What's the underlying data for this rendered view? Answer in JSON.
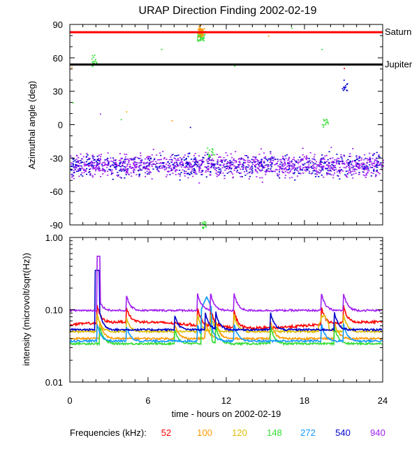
{
  "chart_data": [
    {
      "type": "scatter",
      "title": "URAP Direction Finding  2002-02-19",
      "ylabel": "Azimuthal angle (deg)",
      "xlim": [
        0,
        24
      ],
      "ylim": [
        -90,
        90
      ],
      "yticks": [
        "90",
        "60",
        "30",
        "0",
        "-30",
        "-60",
        "-90"
      ],
      "reference_lines": [
        {
          "label": "Saturn",
          "y": 83,
          "color": "#ff0000"
        },
        {
          "label": "Jupiter",
          "y": 54,
          "color": "#000000"
        }
      ],
      "main_band": {
        "center": -36,
        "spread": 8,
        "colors": [
          "#a020f0",
          "#0000cc"
        ]
      },
      "features": [
        {
          "x": 10.0,
          "y": 80,
          "color": "#33dd33"
        },
        {
          "x": 10.0,
          "y": 84,
          "color": "#ff9900"
        },
        {
          "x": 1.8,
          "y": 58,
          "color": "#33dd33"
        },
        {
          "x": 10.8,
          "y": -24,
          "color": "#33dd33"
        },
        {
          "x": 19.6,
          "y": 2,
          "color": "#33dd33"
        },
        {
          "x": 21.0,
          "y": 35,
          "color": "#0000cc"
        },
        {
          "x": 10.2,
          "y": -88,
          "color": "#33dd33"
        }
      ]
    },
    {
      "type": "line",
      "ylabel": "intensity (microvolt/sqrt(Hz))",
      "xlabel": "time - hours on 2002-02-19",
      "xlim": [
        0,
        24
      ],
      "ylim": [
        0.01,
        1.0
      ],
      "yscale": "log",
      "xticks": [
        "0",
        "6",
        "12",
        "18",
        "24"
      ],
      "yticks": [
        "1.00",
        "0.10",
        "0.01"
      ],
      "legend_title": "Frequencies (kHz):",
      "series": [
        {
          "name": "52",
          "color": "#ff0000",
          "baseline": 0.062
        },
        {
          "name": "100",
          "color": "#ff9900",
          "baseline": 0.04
        },
        {
          "name": "120",
          "color": "#ddbb00",
          "baseline": 0.05
        },
        {
          "name": "148",
          "color": "#33dd33",
          "baseline": 0.034
        },
        {
          "name": "272",
          "color": "#1199ff",
          "baseline": 0.037
        },
        {
          "name": "540",
          "color": "#0000cc",
          "baseline": 0.053
        },
        {
          "name": "940",
          "color": "#a020f0",
          "baseline": 0.098
        }
      ]
    }
  ]
}
